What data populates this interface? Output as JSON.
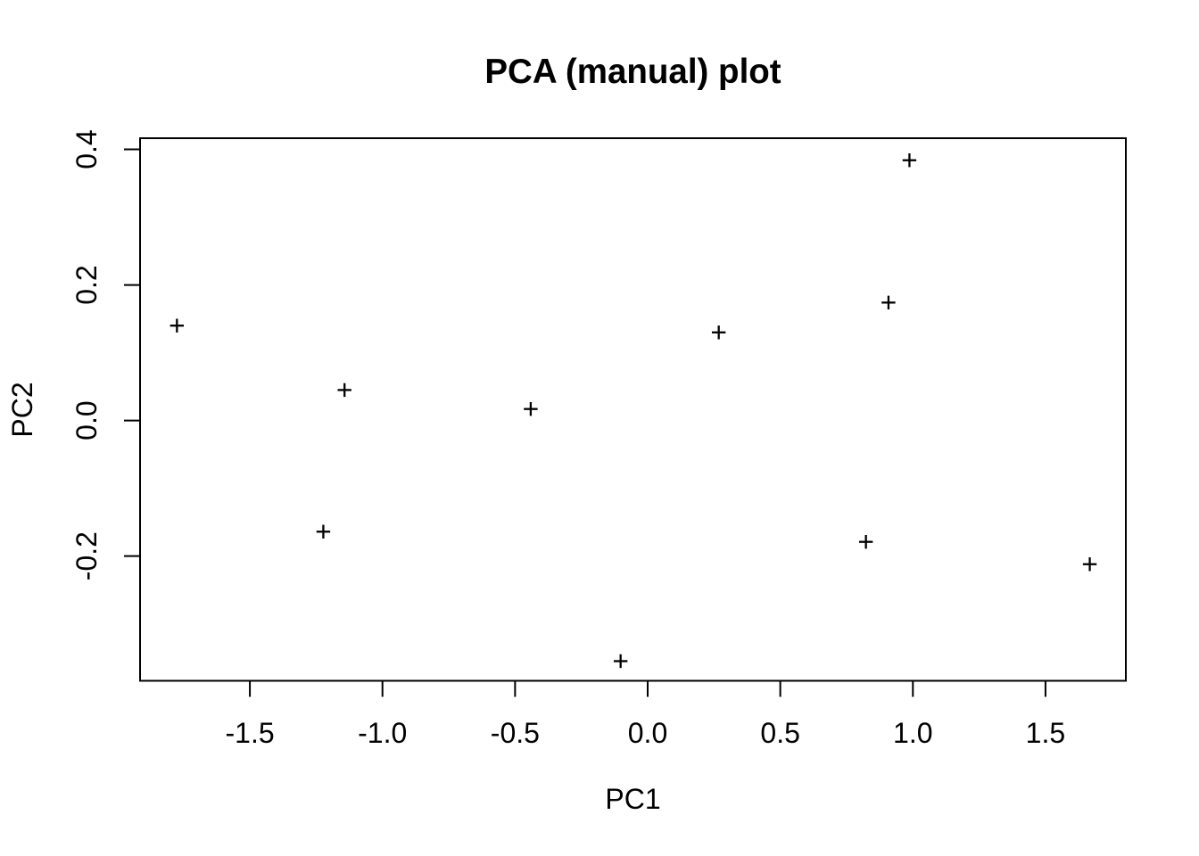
{
  "chart_data": {
    "type": "scatter",
    "title": "PCA (manual) plot",
    "xlabel": "PC1",
    "ylabel": "PC2",
    "marker": "plus",
    "grid": false,
    "legend": null,
    "xlim": [
      -1.914,
      1.803
    ],
    "ylim": [
      -0.384,
      0.4165
    ],
    "x_ticks": [
      -1.5,
      -1.0,
      -0.5,
      0.0,
      0.5,
      1.0,
      1.5
    ],
    "x_tick_labels": [
      "-1.5",
      "-1.0",
      "-0.5",
      "0.0",
      "0.5",
      "1.0",
      "1.5"
    ],
    "y_ticks": [
      -0.2,
      0.0,
      0.2,
      0.4
    ],
    "y_tick_labels": [
      "-0.2",
      "0.0",
      "0.2",
      "0.4"
    ],
    "points": [
      {
        "x": -1.775,
        "y": 0.14
      },
      {
        "x": -1.143,
        "y": 0.045
      },
      {
        "x": -1.223,
        "y": -0.164
      },
      {
        "x": -0.441,
        "y": 0.017
      },
      {
        "x": -0.102,
        "y": -0.355
      },
      {
        "x": 0.268,
        "y": 0.13
      },
      {
        "x": 0.823,
        "y": -0.179
      },
      {
        "x": 0.908,
        "y": 0.174
      },
      {
        "x": 0.987,
        "y": 0.384
      },
      {
        "x": 1.667,
        "y": -0.212
      }
    ],
    "colors": {
      "foreground": "#000000",
      "background": "#ffffff"
    }
  }
}
